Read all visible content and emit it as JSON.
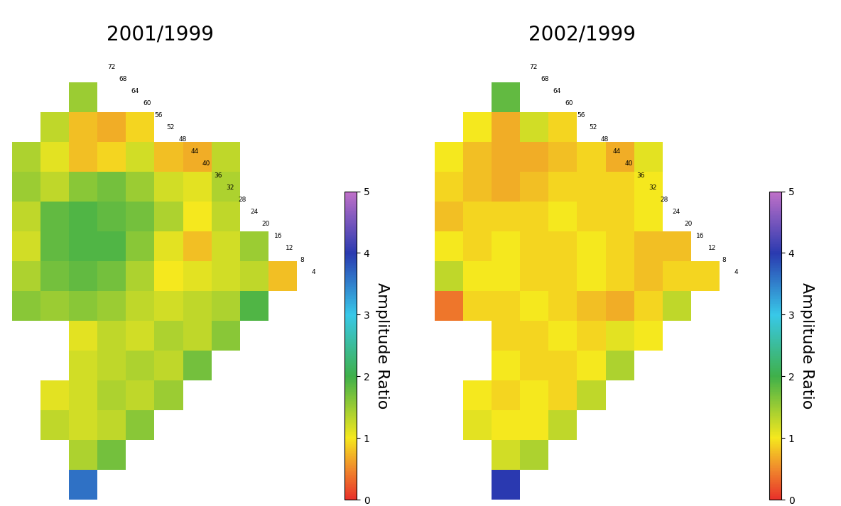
{
  "chart_data": [
    {
      "type": "heatmap",
      "title": "2001/1999",
      "tick_labels": false,
      "line_labels": [
        72,
        68,
        64,
        60,
        56,
        52,
        48,
        44,
        40,
        36,
        32,
        28,
        24,
        20,
        16,
        12,
        8,
        4
      ],
      "cells": [
        [
          null,
          null,
          1.5,
          null,
          null,
          null,
          null,
          null,
          null,
          null
        ],
        [
          null,
          1.3,
          0.8,
          0.7,
          0.9,
          null,
          null,
          null,
          null,
          null
        ],
        [
          1.4,
          1.1,
          0.8,
          0.9,
          1.2,
          0.8,
          0.7,
          1.3,
          null,
          null
        ],
        [
          1.5,
          1.3,
          1.6,
          1.7,
          1.5,
          1.2,
          1.1,
          1.4,
          null,
          null
        ],
        [
          1.3,
          1.8,
          1.9,
          1.8,
          1.7,
          1.4,
          1.0,
          1.3,
          null,
          null
        ],
        [
          1.2,
          1.8,
          1.9,
          1.9,
          1.6,
          1.1,
          0.8,
          1.2,
          1.5,
          null
        ],
        [
          1.4,
          1.7,
          1.8,
          1.7,
          1.4,
          1.0,
          1.1,
          1.2,
          1.3,
          0.8
        ],
        [
          1.6,
          1.5,
          1.6,
          1.5,
          1.3,
          1.2,
          1.3,
          1.4,
          1.9,
          null
        ],
        [
          null,
          null,
          1.1,
          1.3,
          1.2,
          1.4,
          1.3,
          1.6,
          null,
          null
        ],
        [
          null,
          null,
          1.2,
          1.3,
          1.4,
          1.3,
          1.7,
          null,
          null,
          null
        ],
        [
          null,
          1.1,
          1.2,
          1.4,
          1.3,
          1.5,
          null,
          null,
          null,
          null
        ],
        [
          null,
          1.3,
          1.2,
          1.3,
          1.6,
          null,
          null,
          null,
          null,
          null
        ],
        [
          null,
          null,
          1.4,
          1.7,
          null,
          null,
          null,
          null,
          null,
          null
        ],
        [
          null,
          null,
          3.6,
          null,
          null,
          null,
          null,
          null,
          null,
          null
        ]
      ],
      "colorbar_label": "Amplitude Ratio",
      "colorbar_range": [
        0,
        5
      ],
      "colorbar_ticks": [
        0,
        1,
        2,
        3,
        4,
        5
      ]
    },
    {
      "type": "heatmap",
      "title": "2002/1999",
      "tick_labels": false,
      "line_labels": [
        72,
        68,
        64,
        60,
        56,
        52,
        48,
        44,
        40,
        36,
        32,
        28,
        24,
        20,
        16,
        12,
        8,
        4
      ],
      "cells": [
        [
          null,
          null,
          1.8,
          null,
          null,
          null,
          null,
          null,
          null,
          null
        ],
        [
          null,
          1.0,
          0.7,
          1.2,
          0.9,
          null,
          null,
          null,
          null,
          null
        ],
        [
          1.0,
          0.8,
          0.7,
          0.7,
          0.8,
          0.9,
          0.7,
          1.1,
          null,
          null
        ],
        [
          0.9,
          0.8,
          0.7,
          0.8,
          0.9,
          0.9,
          0.9,
          1.0,
          null,
          null
        ],
        [
          0.8,
          0.9,
          0.9,
          0.9,
          1.0,
          0.9,
          0.9,
          1.0,
          null,
          null
        ],
        [
          1.0,
          0.9,
          1.0,
          0.9,
          0.9,
          1.0,
          0.9,
          0.8,
          0.8,
          null
        ],
        [
          1.3,
          1.0,
          1.0,
          0.9,
          0.9,
          1.0,
          0.9,
          0.8,
          0.9,
          0.9
        ],
        [
          0.4,
          0.9,
          0.9,
          1.0,
          0.9,
          0.8,
          0.7,
          0.9,
          1.3,
          null
        ],
        [
          null,
          null,
          0.9,
          0.9,
          1.0,
          0.9,
          1.1,
          1.0,
          null,
          null
        ],
        [
          null,
          null,
          1.0,
          0.9,
          0.9,
          1.0,
          1.4,
          null,
          null,
          null
        ],
        [
          null,
          1.0,
          0.9,
          1.0,
          0.9,
          1.3,
          null,
          null,
          null,
          null
        ],
        [
          null,
          1.1,
          1.0,
          1.0,
          1.3,
          null,
          null,
          null,
          null,
          null
        ],
        [
          null,
          null,
          1.2,
          1.4,
          null,
          null,
          null,
          null,
          null,
          null
        ],
        [
          null,
          null,
          4.0,
          null,
          null,
          null,
          null,
          null,
          null,
          null
        ]
      ],
      "colorbar_label": "Amplitude Ratio",
      "colorbar_range": [
        0,
        5
      ],
      "colorbar_ticks": [
        0,
        1,
        2,
        3,
        4,
        5
      ]
    }
  ]
}
